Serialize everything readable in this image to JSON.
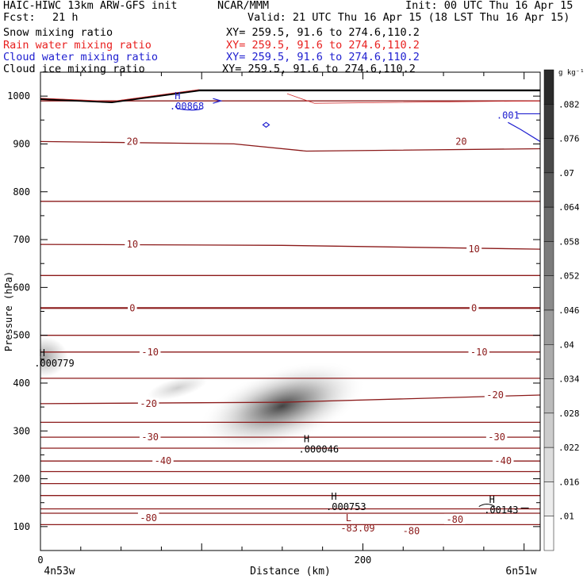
{
  "header": {
    "model": "HAIC-HIWC 13km ARW-GFS init",
    "org": "NCAR/MMM",
    "init": "Init: 00 UTC Thu 16 Apr 15",
    "fcst_label": "Fcst:",
    "fcst_value": "21 h",
    "valid": "Valid: 21 UTC Thu 16 Apr 15 (18 LST Thu 16 Apr 15)",
    "fields": [
      {
        "name": "Snow mixing ratio",
        "xy": "XY= 259.5, 91.6 to 274.6,110.2",
        "color": "#000000"
      },
      {
        "name": "Rain water mixing ratio",
        "xy": "XY= 259.5, 91.6 to 274.6,110.2",
        "color": "#e8201f"
      },
      {
        "name": "Cloud water mixing ratio",
        "xy": "XY= 259.5, 91.6 to 274.6,110.2",
        "color": "#2020d0"
      },
      {
        "name": "Cloud ice mixing ratio",
        "xy": "XY= 259.5, 91.6 to 274.6,110.2",
        "color": "#000000"
      }
    ]
  },
  "chart_data": {
    "type": "heatmap",
    "title": "",
    "xlabel": "Distance (km)",
    "ylabel": "Pressure (hPa)",
    "x_start_label": "4n53w",
    "x_end_label": "6n51w",
    "xlim": [
      0,
      310
    ],
    "x_ticks": [
      0,
      200
    ],
    "ylim": [
      1050,
      50
    ],
    "y_ticks": [
      100,
      200,
      300,
      400,
      500,
      600,
      700,
      800,
      900,
      1000
    ],
    "colorbar": {
      "unit": "g kg⁻¹",
      "ticks": [
        ".01",
        ".016",
        ".022",
        ".028",
        ".034",
        ".04",
        ".046",
        ".052",
        ".058",
        ".064",
        ".07",
        ".076",
        ".082"
      ]
    },
    "temperature_contours": {
      "color": "#8b1a1a",
      "levels": [
        -80,
        -70,
        -60,
        -50,
        -40,
        -30,
        -20,
        -10,
        0,
        10,
        20
      ],
      "labels": [
        {
          "text": "-80",
          "x": 67,
          "p": 118
        },
        {
          "text": "-80",
          "x": 230,
          "p": 91
        },
        {
          "text": "-80",
          "x": 257,
          "p": 115
        },
        {
          "text": "-40",
          "x": 76,
          "p": 237
        },
        {
          "text": "-40",
          "x": 287,
          "p": 237
        },
        {
          "text": "-30",
          "x": 68,
          "p": 287
        },
        {
          "text": "-30",
          "x": 283,
          "p": 287
        },
        {
          "text": "-20",
          "x": 67,
          "p": 357
        },
        {
          "text": "-20",
          "x": 282,
          "p": 375
        },
        {
          "text": "-10",
          "x": 68,
          "p": 465
        },
        {
          "text": "-10",
          "x": 272,
          "p": 465
        },
        {
          "text": "0",
          "x": 57,
          "p": 557
        },
        {
          "text": "0",
          "x": 269,
          "p": 557
        },
        {
          "text": "10",
          "x": 57,
          "p": 690
        },
        {
          "text": "10",
          "x": 269,
          "p": 680
        },
        {
          "text": "20",
          "x": 57,
          "p": 905
        },
        {
          "text": "20",
          "x": 261,
          "p": 905
        }
      ]
    },
    "snow_field": [
      {
        "x": 150,
        "p": 352,
        "max": 0.07
      },
      {
        "x": 2,
        "p": 455,
        "max": 0.035
      },
      {
        "x": 85,
        "p": 390,
        "max": 0.018
      }
    ],
    "extrema": [
      {
        "type": "L",
        "value": "-83.09",
        "x": 196,
        "p": 98,
        "color": "#8b1a1a"
      },
      {
        "type": "H",
        "value": ".000753",
        "x": 187,
        "p": 143,
        "color": "#000000"
      },
      {
        "type": "H",
        "value": ".00143",
        "x": 285,
        "p": 136,
        "color": "#000000"
      },
      {
        "type": "H",
        "value": ".000046",
        "x": 170,
        "p": 263,
        "color": "#000000"
      },
      {
        "type": "H",
        "value": ".000779",
        "x": 6,
        "p": 443,
        "color": "#000000"
      },
      {
        "type": "H",
        "value": ".00868",
        "x": 90,
        "p": 980,
        "color": "#2020d0"
      }
    ],
    "cloud_water_labels": [
      {
        "text": ".001",
        "x": 290,
        "p": 960
      }
    ],
    "ground": {
      "p_start": 994,
      "p_end": 1012
    }
  }
}
